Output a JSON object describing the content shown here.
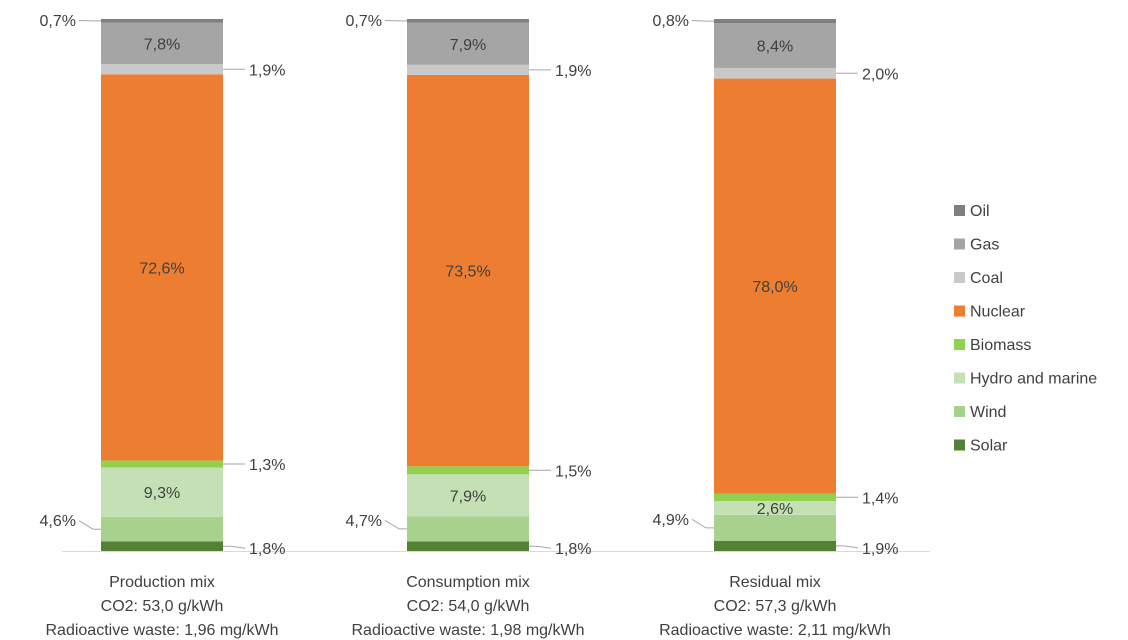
{
  "chart_data": {
    "type": "bar",
    "stacked": true,
    "grid": false,
    "legend_position": "right",
    "categories": [
      [
        "Production mix",
        "CO2: 53,0 g/kWh",
        "Radioactive waste: 1,96 mg/kWh"
      ],
      [
        "Consumption mix",
        "CO2: 54,0 g/kWh",
        "Radioactive waste: 1,98 mg/kWh"
      ],
      [
        "Residual mix",
        "CO2: 57,3 g/kWh",
        "Radioactive waste: 2,11 mg/kWh"
      ]
    ],
    "series": [
      {
        "name": "Solar",
        "color": "#548235",
        "values": [
          1.8,
          1.8,
          1.9
        ],
        "labels": [
          "1,8%",
          "1,8%",
          "1,9%"
        ]
      },
      {
        "name": "Wind",
        "color": "#a9d18e",
        "values": [
          4.6,
          4.7,
          4.9
        ],
        "labels": [
          "4,6%",
          "4,7%",
          "4,9%"
        ]
      },
      {
        "name": "Hydro and marine",
        "color": "#c5e0b4",
        "values": [
          9.3,
          7.9,
          2.6
        ],
        "labels": [
          "9,3%",
          "7,9%",
          "2,6%"
        ]
      },
      {
        "name": "Biomass",
        "color": "#92d050",
        "values": [
          1.3,
          1.5,
          1.4
        ],
        "labels": [
          "1,3%",
          "1,5%",
          "1,4%"
        ]
      },
      {
        "name": "Nuclear",
        "color": "#ed7d31",
        "values": [
          72.6,
          73.5,
          78.0
        ],
        "labels": [
          "72,6%",
          "73,5%",
          "78,0%"
        ]
      },
      {
        "name": "Coal",
        "color": "#c9c9c9",
        "values": [
          1.9,
          1.9,
          2.0
        ],
        "labels": [
          "1,9%",
          "1,9%",
          "2,0%"
        ]
      },
      {
        "name": "Gas",
        "color": "#a5a5a5",
        "values": [
          7.8,
          7.9,
          8.4
        ],
        "labels": [
          "7,8%",
          "7,9%",
          "8,4%"
        ]
      },
      {
        "name": "Oil",
        "color": "#7f7f7f",
        "values": [
          0.7,
          0.7,
          0.8
        ],
        "labels": [
          "0,7%",
          "0,7%",
          "0,8%"
        ]
      }
    ],
    "legend_order": [
      "Oil",
      "Gas",
      "Coal",
      "Nuclear",
      "Biomass",
      "Hydro and marine",
      "Wind",
      "Solar"
    ],
    "ylim": [
      0,
      100
    ]
  }
}
